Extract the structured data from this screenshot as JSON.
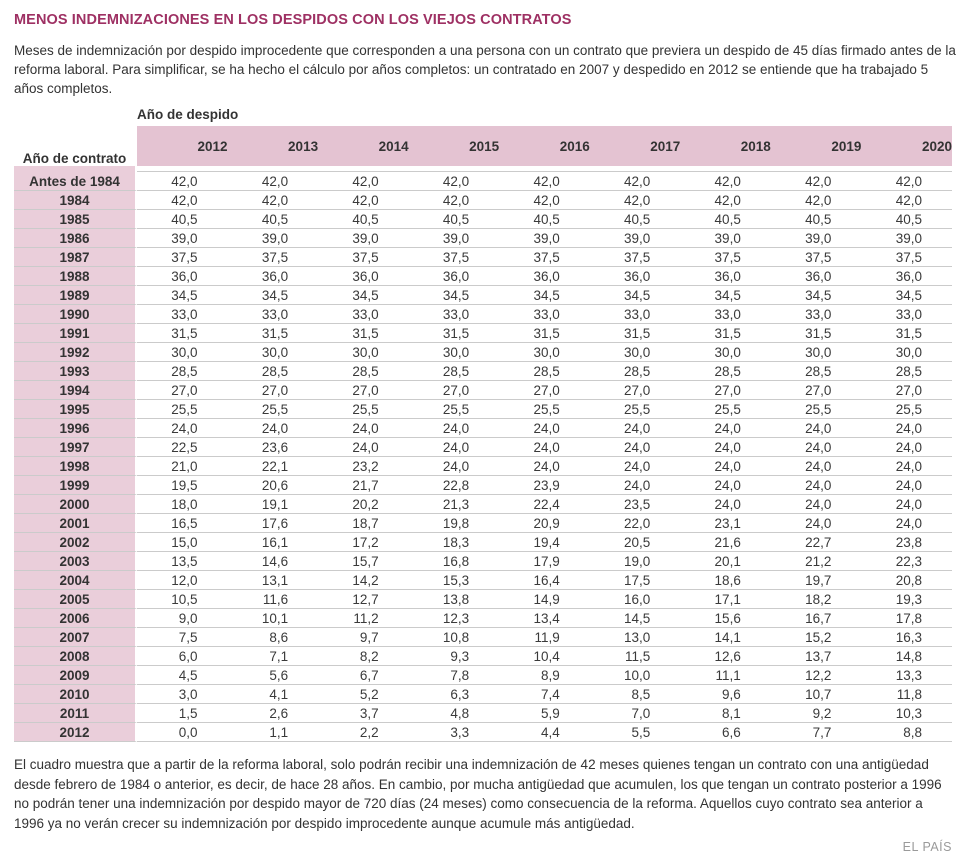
{
  "page": {
    "title": "MENOS INDEMNIZACIONES EN LOS DESPIDOS CON LOS VIEJOS CONTRATOS",
    "intro": "Meses de indemnización por despido improcedente que corresponden a una persona con un contrato que previera un despido de 45 días firmado antes de la reforma laboral. Para simplificar, se ha hecho el cálculo por años completos: un contratado en 2007 y despedido en 2012 se entiende que ha trabajado 5 años completos.",
    "footnote": "El cuadro muestra que a partir de la reforma laboral, solo podrán recibir una indemnización de 42 meses quienes tengan un contrato con una antigüedad desde febrero de 1984 o anterior, es decir, de hace 28 años. En cambio, por mucha antigüedad que acumulen, los que tengan un contrato posterior a 1996 no podrán tener una indemnización por despido mayor de 720 días (24 meses) como consecuencia de la reforma. Aquellos cuyo contrato sea anterior a 1996 ya no verán crecer su indemnización por despido improcedente aunque acumule más antigüedad.",
    "credit": "EL PAÍS"
  },
  "table": {
    "column_group_label": "Año de despido",
    "row_group_label": "Año de contrato"
  },
  "colors": {
    "title": "#9E3063",
    "header_band": "#E4C3D2",
    "row_header_bg": "#EACEDA",
    "grid_line": "#CBCBCB",
    "credit_text": "#9A9A9A"
  },
  "chart_data": {
    "type": "table",
    "title": "MENOS INDEMNIZACIONES EN LOS DESPIDOS CON LOS VIEJOS CONTRATOS",
    "column_group_label": "Año de despido",
    "row_group_label": "Año de contrato",
    "columns": [
      "2012",
      "2013",
      "2014",
      "2015",
      "2016",
      "2017",
      "2018",
      "2019",
      "2020"
    ],
    "value_format": "one decimal, comma as decimal separator",
    "rows": [
      {
        "label": "Antes de 1984",
        "values": [
          42.0,
          42.0,
          42.0,
          42.0,
          42.0,
          42.0,
          42.0,
          42.0,
          42.0
        ]
      },
      {
        "label": "1984",
        "values": [
          42.0,
          42.0,
          42.0,
          42.0,
          42.0,
          42.0,
          42.0,
          42.0,
          42.0
        ]
      },
      {
        "label": "1985",
        "values": [
          40.5,
          40.5,
          40.5,
          40.5,
          40.5,
          40.5,
          40.5,
          40.5,
          40.5
        ]
      },
      {
        "label": "1986",
        "values": [
          39.0,
          39.0,
          39.0,
          39.0,
          39.0,
          39.0,
          39.0,
          39.0,
          39.0
        ]
      },
      {
        "label": "1987",
        "values": [
          37.5,
          37.5,
          37.5,
          37.5,
          37.5,
          37.5,
          37.5,
          37.5,
          37.5
        ]
      },
      {
        "label": "1988",
        "values": [
          36.0,
          36.0,
          36.0,
          36.0,
          36.0,
          36.0,
          36.0,
          36.0,
          36.0
        ]
      },
      {
        "label": "1989",
        "values": [
          34.5,
          34.5,
          34.5,
          34.5,
          34.5,
          34.5,
          34.5,
          34.5,
          34.5
        ]
      },
      {
        "label": "1990",
        "values": [
          33.0,
          33.0,
          33.0,
          33.0,
          33.0,
          33.0,
          33.0,
          33.0,
          33.0
        ]
      },
      {
        "label": "1991",
        "values": [
          31.5,
          31.5,
          31.5,
          31.5,
          31.5,
          31.5,
          31.5,
          31.5,
          31.5
        ]
      },
      {
        "label": "1992",
        "values": [
          30.0,
          30.0,
          30.0,
          30.0,
          30.0,
          30.0,
          30.0,
          30.0,
          30.0
        ]
      },
      {
        "label": "1993",
        "values": [
          28.5,
          28.5,
          28.5,
          28.5,
          28.5,
          28.5,
          28.5,
          28.5,
          28.5
        ]
      },
      {
        "label": "1994",
        "values": [
          27.0,
          27.0,
          27.0,
          27.0,
          27.0,
          27.0,
          27.0,
          27.0,
          27.0
        ]
      },
      {
        "label": "1995",
        "values": [
          25.5,
          25.5,
          25.5,
          25.5,
          25.5,
          25.5,
          25.5,
          25.5,
          25.5
        ]
      },
      {
        "label": "1996",
        "values": [
          24.0,
          24.0,
          24.0,
          24.0,
          24.0,
          24.0,
          24.0,
          24.0,
          24.0
        ]
      },
      {
        "label": "1997",
        "values": [
          22.5,
          23.6,
          24.0,
          24.0,
          24.0,
          24.0,
          24.0,
          24.0,
          24.0
        ]
      },
      {
        "label": "1998",
        "values": [
          21.0,
          22.1,
          23.2,
          24.0,
          24.0,
          24.0,
          24.0,
          24.0,
          24.0
        ]
      },
      {
        "label": "1999",
        "values": [
          19.5,
          20.6,
          21.7,
          22.8,
          23.9,
          24.0,
          24.0,
          24.0,
          24.0
        ]
      },
      {
        "label": "2000",
        "values": [
          18.0,
          19.1,
          20.2,
          21.3,
          22.4,
          23.5,
          24.0,
          24.0,
          24.0
        ]
      },
      {
        "label": "2001",
        "values": [
          16.5,
          17.6,
          18.7,
          19.8,
          20.9,
          22.0,
          23.1,
          24.0,
          24.0
        ]
      },
      {
        "label": "2002",
        "values": [
          15.0,
          16.1,
          17.2,
          18.3,
          19.4,
          20.5,
          21.6,
          22.7,
          23.8
        ]
      },
      {
        "label": "2003",
        "values": [
          13.5,
          14.6,
          15.7,
          16.8,
          17.9,
          19.0,
          20.1,
          21.2,
          22.3
        ]
      },
      {
        "label": "2004",
        "values": [
          12.0,
          13.1,
          14.2,
          15.3,
          16.4,
          17.5,
          18.6,
          19.7,
          20.8
        ]
      },
      {
        "label": "2005",
        "values": [
          10.5,
          11.6,
          12.7,
          13.8,
          14.9,
          16.0,
          17.1,
          18.2,
          19.3
        ]
      },
      {
        "label": "2006",
        "values": [
          9.0,
          10.1,
          11.2,
          12.3,
          13.4,
          14.5,
          15.6,
          16.7,
          17.8
        ]
      },
      {
        "label": "2007",
        "values": [
          7.5,
          8.6,
          9.7,
          10.8,
          11.9,
          13.0,
          14.1,
          15.2,
          16.3
        ]
      },
      {
        "label": "2008",
        "values": [
          6.0,
          7.1,
          8.2,
          9.3,
          10.4,
          11.5,
          12.6,
          13.7,
          14.8
        ]
      },
      {
        "label": "2009",
        "values": [
          4.5,
          5.6,
          6.7,
          7.8,
          8.9,
          10.0,
          11.1,
          12.2,
          13.3
        ]
      },
      {
        "label": "2010",
        "values": [
          3.0,
          4.1,
          5.2,
          6.3,
          7.4,
          8.5,
          9.6,
          10.7,
          11.8
        ]
      },
      {
        "label": "2011",
        "values": [
          1.5,
          2.6,
          3.7,
          4.8,
          5.9,
          7.0,
          8.1,
          9.2,
          10.3
        ]
      },
      {
        "label": "2012",
        "values": [
          0.0,
          1.1,
          2.2,
          3.3,
          4.4,
          5.5,
          6.6,
          7.7,
          8.8
        ]
      }
    ]
  }
}
